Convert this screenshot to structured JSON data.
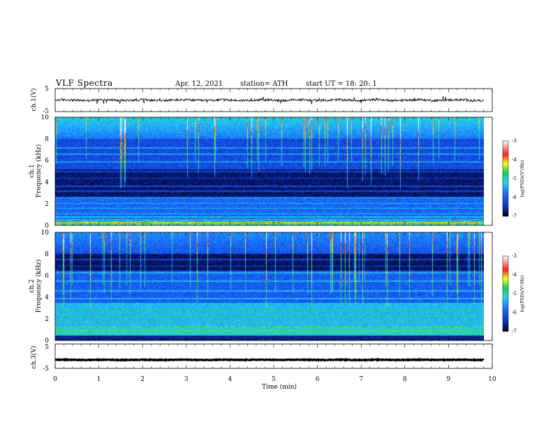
{
  "header": {
    "title": "VLF  Spectra",
    "date": "Apr. 12, 2021",
    "station": "station= ATH",
    "start": "start  UT  =    18: 20: 1"
  },
  "chart_data": [
    {
      "type": "line",
      "name": "ch1-waveform",
      "ylabel": "ch.1(V)",
      "yticks": [
        "5",
        "-5"
      ],
      "ylim": [
        -5,
        5
      ],
      "xlim": [
        0,
        10
      ],
      "trace_level": 0,
      "trace_noise": 0.5
    },
    {
      "type": "heatmap",
      "name": "ch1-spectrogram",
      "ylabel": "ch.1",
      "ylabel2": "Frequency  (kHz)",
      "yticks": [
        "10",
        "8",
        "6",
        "4",
        "2",
        "0"
      ],
      "ylim": [
        0,
        10
      ],
      "xlim": [
        0,
        9.8
      ]
    },
    {
      "type": "heatmap",
      "name": "ch2-spectrogram",
      "ylabel": "ch.2",
      "ylabel2": "Frequency  (kHz)",
      "yticks": [
        "10",
        "8",
        "6",
        "4",
        "2",
        "0"
      ],
      "ylim": [
        0,
        10
      ],
      "xlim": [
        0,
        9.8
      ]
    },
    {
      "type": "line",
      "name": "ch3-waveform",
      "ylabel": "ch.3(V)",
      "yticks": [
        "5",
        "-5"
      ],
      "ylim": [
        -5,
        5
      ],
      "xlim": [
        0,
        10
      ],
      "trace_level": -1.5,
      "trace_noise": 0.15
    }
  ],
  "xaxis": {
    "label": "Time  (min)",
    "ticks": [
      "0",
      "1",
      "2",
      "3",
      "4",
      "5",
      "6",
      "7",
      "8",
      "9",
      "10"
    ]
  },
  "colorbar": {
    "ticks": [
      "-3",
      "-4",
      "-5",
      "-6",
      "-7"
    ],
    "label": "log(PSD)(V²/Hz)",
    "colors": [
      "#000000",
      "#0a2aa0",
      "#1e6cff",
      "#26d6f0",
      "#22c85a",
      "#f0ff20",
      "#ff2020",
      "#ffffff"
    ]
  }
}
